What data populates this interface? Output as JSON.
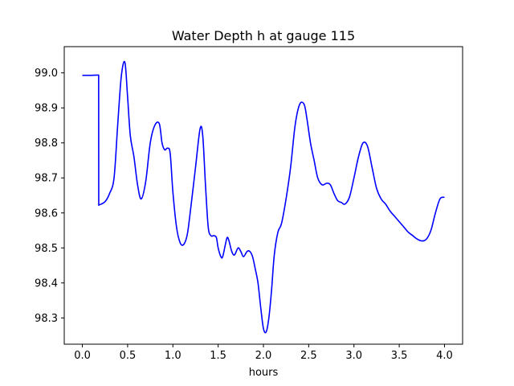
{
  "chart_data": {
    "type": "line",
    "title": "Water Depth h at gauge 115",
    "xlabel": "hours",
    "ylabel": "",
    "xlim": [
      -0.2,
      4.2
    ],
    "ylim": [
      98.225,
      99.075
    ],
    "xticks": [
      0.0,
      0.5,
      1.0,
      1.5,
      2.0,
      2.5,
      3.0,
      3.5,
      4.0
    ],
    "xtick_labels": [
      "0.0",
      "0.5",
      "1.0",
      "1.5",
      "2.0",
      "2.5",
      "3.0",
      "3.5",
      "4.0"
    ],
    "yticks": [
      98.3,
      98.4,
      98.5,
      98.6,
      98.7,
      98.8,
      98.9,
      99.0
    ],
    "ytick_labels": [
      "98.3",
      "98.4",
      "98.5",
      "98.6",
      "98.7",
      "98.8",
      "98.9",
      "99.0"
    ],
    "grid": false,
    "line_color": "#0000ff",
    "series": [
      {
        "name": "",
        "x": [
          0.0,
          0.1,
          0.18,
          0.181,
          0.25,
          0.3,
          0.35,
          0.39,
          0.43,
          0.47,
          0.5,
          0.53,
          0.57,
          0.61,
          0.65,
          0.7,
          0.75,
          0.8,
          0.85,
          0.88,
          0.91,
          0.94,
          0.97,
          1.0,
          1.04,
          1.08,
          1.12,
          1.16,
          1.2,
          1.25,
          1.3,
          1.33,
          1.36,
          1.39,
          1.42,
          1.45,
          1.48,
          1.5,
          1.53,
          1.55,
          1.58,
          1.6,
          1.62,
          1.65,
          1.68,
          1.72,
          1.75,
          1.78,
          1.82,
          1.85,
          1.88,
          1.91,
          1.94,
          1.97,
          2.0,
          2.03,
          2.06,
          2.09,
          2.12,
          2.16,
          2.2,
          2.25,
          2.3,
          2.35,
          2.4,
          2.45,
          2.48,
          2.52,
          2.56,
          2.6,
          2.65,
          2.7,
          2.74,
          2.78,
          2.82,
          2.86,
          2.9,
          2.95,
          3.0,
          3.05,
          3.1,
          3.15,
          3.2,
          3.25,
          3.3,
          3.35,
          3.4,
          3.45,
          3.5,
          3.55,
          3.6,
          3.65,
          3.7,
          3.75,
          3.8,
          3.85,
          3.9,
          3.95,
          4.0
        ],
        "values": [
          98.993,
          98.993,
          98.994,
          98.622,
          98.632,
          98.655,
          98.7,
          98.85,
          98.99,
          99.03,
          98.93,
          98.82,
          98.76,
          98.68,
          98.64,
          98.69,
          98.8,
          98.85,
          98.855,
          98.8,
          98.78,
          98.785,
          98.77,
          98.66,
          98.56,
          98.515,
          98.51,
          98.54,
          98.62,
          98.73,
          98.84,
          98.82,
          98.68,
          98.56,
          98.535,
          98.535,
          98.53,
          98.5,
          98.475,
          98.475,
          98.51,
          98.53,
          98.52,
          98.49,
          98.48,
          98.5,
          98.49,
          98.475,
          98.49,
          98.49,
          98.475,
          98.44,
          98.4,
          98.33,
          98.27,
          98.26,
          98.3,
          98.38,
          98.48,
          98.545,
          98.57,
          98.64,
          98.73,
          98.85,
          98.91,
          98.91,
          98.87,
          98.8,
          98.75,
          98.7,
          98.68,
          98.685,
          98.68,
          98.655,
          98.635,
          98.63,
          98.625,
          98.645,
          98.7,
          98.76,
          98.8,
          98.79,
          98.73,
          98.67,
          98.64,
          98.625,
          98.605,
          98.59,
          98.575,
          98.56,
          98.545,
          98.535,
          98.525,
          98.52,
          98.525,
          98.55,
          98.6,
          98.64,
          98.645
        ]
      }
    ]
  }
}
